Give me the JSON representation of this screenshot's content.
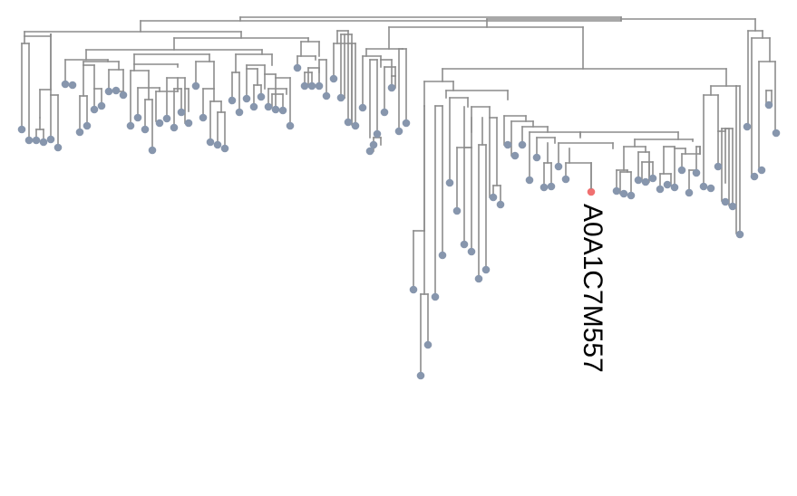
{
  "tree": {
    "highlighted_leaf": "A0A1C7M557",
    "colors": {
      "branch": "#8c8c8c",
      "leaf": "#8796ad",
      "highlight": "#f07070"
    }
  }
}
